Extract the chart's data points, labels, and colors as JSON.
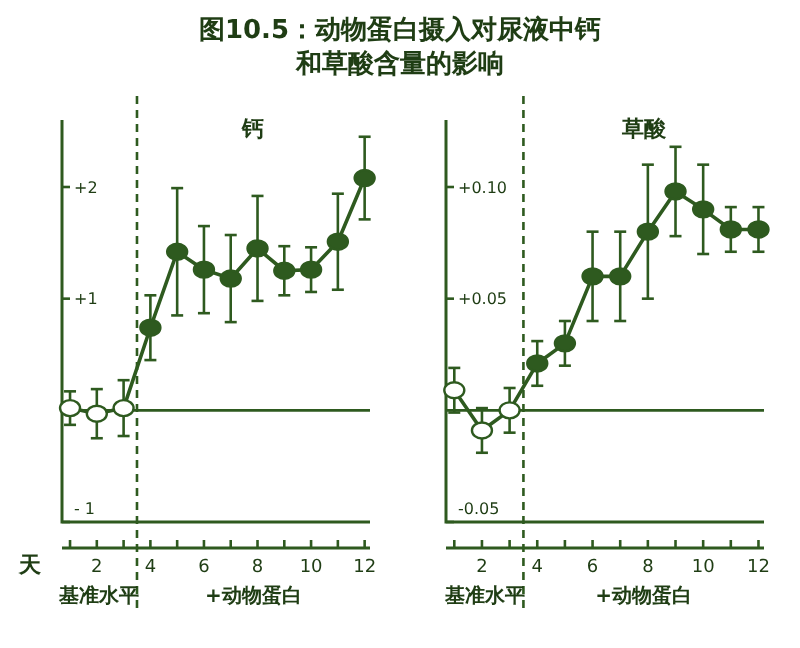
{
  "chart_data": [
    {
      "type": "line",
      "title": "图10.5：动物蛋白摄入对尿液中钙和草酸含量的影响",
      "subtitle": "钙",
      "xlabel": "天",
      "annotations": [
        "基准水平",
        "+动物蛋白"
      ],
      "xlim": [
        0.7,
        12.2
      ],
      "xticks": [
        {
          "value": 1,
          "label": null
        },
        2,
        {
          "value": 3,
          "label": null
        },
        4,
        {
          "value": 5,
          "label": null
        },
        6,
        {
          "value": 7,
          "label": null
        },
        8,
        {
          "value": 9,
          "label": null
        },
        10,
        {
          "value": 11,
          "label": null
        },
        12
      ],
      "ylim": [
        -1,
        2.6
      ],
      "yticks": [
        {
          "value": 2,
          "label": "+2"
        },
        {
          "value": 1,
          "label": "+1"
        },
        {
          "value": -1,
          "label": "- 1"
        }
      ],
      "ref_lines": [
        {
          "axis": "x",
          "value": 3.5,
          "line_style": "dashed"
        },
        {
          "axis": "y",
          "value": 0
        }
      ],
      "marker": "circle",
      "grid": false,
      "series": [
        {
          "color": "#2e5a1f",
          "x": [
            1,
            2,
            3,
            4,
            5,
            6,
            7,
            8,
            9,
            10,
            11,
            12
          ],
          "values": [
            0.02,
            -0.03,
            0.02,
            0.74,
            1.42,
            1.26,
            1.18,
            1.45,
            1.25,
            1.26,
            1.51,
            2.08
          ],
          "errors": [
            0.15,
            0.22,
            0.25,
            0.29,
            0.57,
            0.39,
            0.39,
            0.47,
            0.22,
            0.2,
            0.43,
            0.37
          ],
          "colors": [
            "#ffffff",
            "#ffffff",
            "#ffffff",
            "#2e5a1f",
            "#2e5a1f",
            "#2e5a1f",
            "#2e5a1f",
            "#2e5a1f",
            "#2e5a1f",
            "#2e5a1f",
            "#2e5a1f",
            "#2e5a1f"
          ]
        }
      ]
    },
    {
      "type": "line",
      "subtitle": "草酸",
      "annotations": [
        "基准水平",
        "+动物蛋白"
      ],
      "xlim": [
        0.7,
        12.2
      ],
      "xticks": [
        {
          "value": 1,
          "label": null
        },
        2,
        {
          "value": 3,
          "label": null
        },
        4,
        {
          "value": 5,
          "label": null
        },
        6,
        {
          "value": 7,
          "label": null
        },
        8,
        {
          "value": 9,
          "label": null
        },
        10,
        {
          "value": 11,
          "label": null
        },
        12
      ],
      "ylim": [
        -0.05,
        0.13
      ],
      "yticks": [
        {
          "value": 0.1,
          "label": "+0.10"
        },
        {
          "value": 0.05,
          "label": "+0.05"
        },
        {
          "value": -0.05,
          "label": "-0.05"
        }
      ],
      "ref_lines": [
        {
          "axis": "x",
          "value": 3.5,
          "line_style": "dashed"
        },
        {
          "axis": "y",
          "value": 0
        }
      ],
      "marker": "circle",
      "grid": false,
      "series": [
        {
          "color": "#2e5a1f",
          "x": [
            1,
            2,
            3,
            4,
            5,
            6,
            7,
            8,
            9,
            10,
            11,
            12
          ],
          "values": [
            0.009,
            -0.009,
            0,
            0.021,
            0.03,
            0.06,
            0.06,
            0.08,
            0.098,
            0.09,
            0.081,
            0.081
          ],
          "errors": [
            0.01,
            0.01,
            0.01,
            0.01,
            0.01,
            0.02,
            0.02,
            0.03,
            0.02,
            0.02,
            0.01,
            0.01
          ],
          "colors": [
            "#ffffff",
            "#ffffff",
            "#ffffff",
            "#2e5a1f",
            "#2e5a1f",
            "#2e5a1f",
            "#2e5a1f",
            "#2e5a1f",
            "#2e5a1f",
            "#2e5a1f",
            "#2e5a1f",
            "#2e5a1f"
          ]
        }
      ]
    }
  ]
}
